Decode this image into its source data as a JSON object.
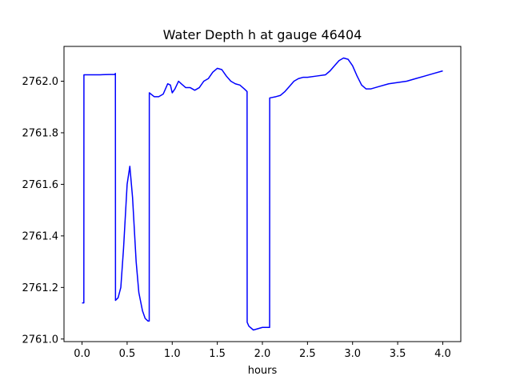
{
  "chart_data": {
    "type": "line",
    "title": "Water Depth h at gauge 46404",
    "xlabel": "hours",
    "ylabel": "",
    "xlim": [
      -0.2,
      4.2
    ],
    "ylim": [
      2760.99,
      2762.135
    ],
    "x_ticks": [
      0.0,
      0.5,
      1.0,
      1.5,
      2.0,
      2.5,
      3.0,
      3.5,
      4.0
    ],
    "x_tick_labels": [
      "0.0",
      "0.5",
      "1.0",
      "1.5",
      "2.0",
      "2.5",
      "3.0",
      "3.5",
      "4.0"
    ],
    "y_ticks": [
      2761.0,
      2761.2,
      2761.4,
      2761.6,
      2761.8,
      2762.0
    ],
    "y_tick_labels": [
      "2761.0",
      "2761.2",
      "2761.4",
      "2761.6",
      "2761.8",
      "2762.0"
    ],
    "grid": false,
    "legend": "none",
    "series": [
      {
        "color": "#0000ff",
        "x": [
          0.0,
          0.02,
          0.021,
          0.1,
          0.2,
          0.3,
          0.36,
          0.37,
          0.371,
          0.4,
          0.43,
          0.46,
          0.5,
          0.53,
          0.56,
          0.6,
          0.63,
          0.67,
          0.7,
          0.73,
          0.745,
          0.746,
          0.8,
          0.85,
          0.9,
          0.95,
          0.98,
          1.0,
          1.03,
          1.07,
          1.1,
          1.15,
          1.2,
          1.25,
          1.3,
          1.35,
          1.4,
          1.45,
          1.5,
          1.55,
          1.6,
          1.65,
          1.7,
          1.75,
          1.8,
          1.83,
          1.831,
          1.85,
          1.9,
          1.95,
          2.0,
          2.05,
          2.08,
          2.081,
          2.15,
          2.2,
          2.25,
          2.3,
          2.35,
          2.4,
          2.45,
          2.5,
          2.6,
          2.7,
          2.75,
          2.8,
          2.85,
          2.9,
          2.95,
          3.0,
          3.05,
          3.1,
          3.15,
          3.2,
          3.3,
          3.4,
          3.5,
          3.6,
          3.7,
          3.8,
          3.9,
          4.0
        ],
        "y": [
          2761.14,
          2761.14,
          2762.025,
          2762.025,
          2762.025,
          2762.026,
          2762.026,
          2762.03,
          2761.15,
          2761.16,
          2761.2,
          2761.35,
          2761.6,
          2761.67,
          2761.55,
          2761.3,
          2761.18,
          2761.11,
          2761.08,
          2761.07,
          2761.07,
          2761.955,
          2761.94,
          2761.94,
          2761.95,
          2761.99,
          2761.985,
          2761.955,
          2761.97,
          2762.0,
          2761.99,
          2761.975,
          2761.975,
          2761.965,
          2761.975,
          2762.0,
          2762.01,
          2762.035,
          2762.05,
          2762.045,
          2762.02,
          2762.0,
          2761.99,
          2761.985,
          2761.97,
          2761.96,
          2761.065,
          2761.05,
          2761.035,
          2761.04,
          2761.045,
          2761.045,
          2761.045,
          2761.935,
          2761.94,
          2761.945,
          2761.96,
          2761.98,
          2762.0,
          2762.01,
          2762.015,
          2762.015,
          2762.02,
          2762.025,
          2762.04,
          2762.06,
          2762.08,
          2762.09,
          2762.085,
          2762.06,
          2762.02,
          2761.985,
          2761.97,
          2761.97,
          2761.98,
          2761.99,
          2761.995,
          2762.0,
          2762.01,
          2762.02,
          2762.03,
          2762.04
        ]
      }
    ]
  }
}
